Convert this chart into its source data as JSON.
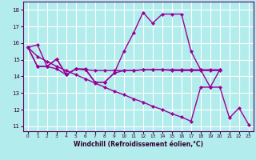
{
  "xlabel": "Windchill (Refroidissement éolien,°C)",
  "background_color": "#b2ecec",
  "grid_color": "#ffffff",
  "line_color": "#990099",
  "xlim": [
    -0.5,
    23.5
  ],
  "ylim": [
    10.7,
    18.5
  ],
  "yticks": [
    11,
    12,
    13,
    14,
    15,
    16,
    17,
    18
  ],
  "xticks": [
    0,
    1,
    2,
    3,
    4,
    5,
    6,
    7,
    8,
    9,
    10,
    11,
    12,
    13,
    14,
    15,
    16,
    17,
    18,
    19,
    20,
    21,
    22,
    23
  ],
  "series": [
    {
      "x": [
        0,
        1,
        2,
        3,
        4,
        5,
        6,
        7,
        8,
        9,
        10,
        11,
        12,
        13,
        14,
        15,
        16,
        17,
        18,
        19,
        20
      ],
      "y": [
        15.75,
        15.9,
        14.6,
        15.05,
        14.1,
        14.45,
        14.45,
        13.65,
        13.65,
        14.2,
        15.5,
        16.6,
        17.85,
        17.2,
        17.75,
        17.75,
        17.75,
        15.5,
        14.4,
        13.35,
        14.4
      ]
    },
    {
      "x": [
        0,
        1,
        2,
        3,
        4,
        5,
        6,
        7,
        8,
        9,
        10,
        11,
        12,
        13,
        14,
        15,
        16,
        17,
        18,
        19,
        20
      ],
      "y": [
        15.75,
        14.6,
        14.6,
        14.45,
        14.1,
        14.45,
        14.4,
        14.35,
        14.35,
        14.35,
        14.35,
        14.35,
        14.4,
        14.4,
        14.4,
        14.4,
        14.4,
        14.4,
        14.4,
        14.4,
        14.4
      ]
    },
    {
      "x": [
        0,
        1,
        2,
        3,
        4,
        5,
        6,
        7,
        8,
        9,
        10,
        11,
        12,
        13,
        14,
        15,
        16,
        17,
        18,
        19,
        20
      ],
      "y": [
        15.75,
        14.6,
        14.6,
        15.05,
        14.1,
        14.45,
        14.4,
        13.65,
        13.65,
        14.2,
        14.35,
        14.35,
        14.4,
        14.4,
        14.4,
        14.35,
        14.35,
        14.35,
        14.35,
        14.35,
        14.35
      ]
    },
    {
      "x": [
        0,
        1,
        2,
        3,
        4,
        5,
        6,
        7,
        8,
        9,
        10,
        11,
        12,
        13,
        14,
        15,
        16,
        17,
        18,
        19,
        20,
        21,
        22,
        23
      ],
      "y": [
        15.75,
        15.2,
        14.9,
        14.6,
        14.35,
        14.1,
        13.85,
        13.6,
        13.35,
        13.1,
        12.9,
        12.65,
        12.45,
        12.2,
        12.0,
        11.75,
        11.55,
        11.3,
        13.35,
        13.35,
        13.35,
        11.5,
        12.1,
        11.1
      ]
    }
  ]
}
